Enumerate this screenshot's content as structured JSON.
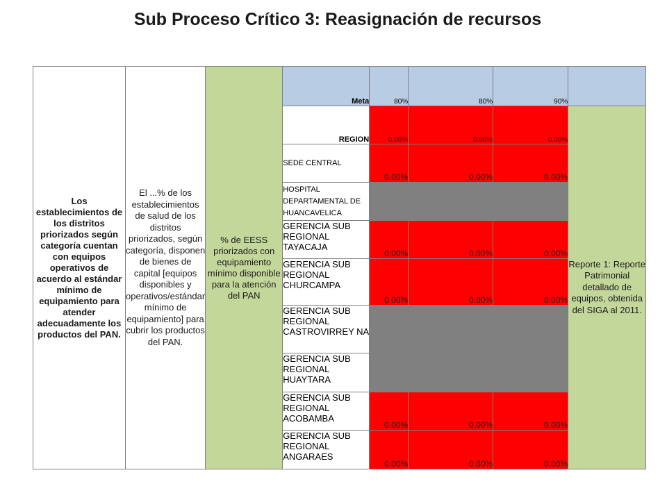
{
  "title": "Sub Proceso Crítico 3: Reasignación de recursos",
  "indicator": {
    "description": "Los establecimientos de los distritos priorizados según categoría cuentan con equipos operativos de acuerdo al estándar mínimo de equipamiento para atender adecuadamente los productos del PAN.",
    "definition": "El ...% de los establecimientos de salud de los distritos priorizados, según categoría, disponen de bienes de capital [equipos disponibles y operativos/estándar mínimo de equipamiento] para cubrir los productos del PAN.",
    "measure": "% de EESS priorizados con equipamiento mínimo disponible para la atención del PAN",
    "source": "Reporte 1: Reporte Patrimonial detallado de equipos, obtenida del SIGA al 2011."
  },
  "meta_row": {
    "label": "Meta",
    "values": [
      "80%",
      "80%",
      "90%"
    ]
  },
  "region_row": {
    "label": "REGION",
    "values": [
      "0.00%",
      "0.00%",
      "0.00%"
    ]
  },
  "rows": [
    {
      "name": "SEDE CENTRAL",
      "status": "red",
      "values": [
        "0.00%",
        "0.00%",
        "0.00%"
      ]
    },
    {
      "name": "HOSPITAL DEPARTAMENTAL DE HUANCAVELICA",
      "status": "gray",
      "values": [
        "",
        "",
        ""
      ]
    },
    {
      "name": "GERENCIA SUB REGIONAL TAYACAJA",
      "status": "red",
      "values": [
        "0.00%",
        "0.00%",
        "0.00%"
      ]
    },
    {
      "name": "GERENCIA SUB REGIONAL CHURCAMPA",
      "status": "red",
      "values": [
        "0.00%",
        "0.00%",
        "0.00%"
      ]
    },
    {
      "name": "GERENCIA SUB REGIONAL CASTROVIRREY NA",
      "status": "gray",
      "values": [
        "",
        "",
        ""
      ]
    },
    {
      "name": "GERENCIA SUB REGIONAL HUAYTARA",
      "status": "gray",
      "values": [
        "",
        "",
        ""
      ]
    },
    {
      "name": "GERENCIA SUB REGIONAL ACOBAMBA",
      "status": "red",
      "values": [
        "0.00%",
        "0.00%",
        "0.00%"
      ]
    },
    {
      "name": "GERENCIA SUB REGIONAL ANGARAES",
      "status": "red",
      "values": [
        "0.00%",
        "0.00%",
        "0.00%"
      ]
    }
  ],
  "colors": {
    "green": "#c4d79b",
    "blue": "#b8cce4",
    "red": "#ff0000",
    "gray": "#808080"
  }
}
